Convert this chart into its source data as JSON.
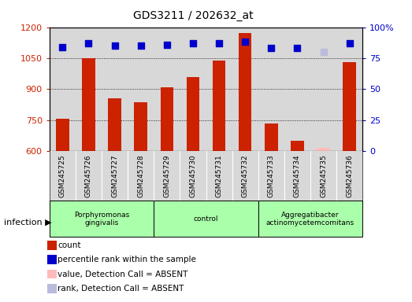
{
  "title": "GDS3211 / 202632_at",
  "samples": [
    "GSM245725",
    "GSM245726",
    "GSM245727",
    "GSM245728",
    "GSM245729",
    "GSM245730",
    "GSM245731",
    "GSM245732",
    "GSM245733",
    "GSM245734",
    "GSM245735",
    "GSM245736"
  ],
  "counts": [
    755,
    1050,
    855,
    835,
    910,
    960,
    1040,
    1170,
    735,
    650,
    615,
    1030
  ],
  "absent_counts": [
    null,
    null,
    null,
    null,
    null,
    null,
    null,
    null,
    null,
    null,
    615,
    null
  ],
  "percentile_ranks": [
    84,
    87,
    85,
    85,
    86,
    87,
    87,
    88,
    83,
    83,
    null,
    87
  ],
  "absent_ranks": [
    null,
    null,
    null,
    null,
    null,
    null,
    null,
    null,
    null,
    null,
    80,
    null
  ],
  "group_info": [
    {
      "start": 0,
      "end": 3,
      "label": "Porphyromonas\ngingivalis",
      "color": "#aaffaa"
    },
    {
      "start": 4,
      "end": 7,
      "label": "control",
      "color": "#aaffaa"
    },
    {
      "start": 8,
      "end": 11,
      "label": "Aggregatibacter\nactinomycetemcomitans",
      "color": "#aaffaa"
    }
  ],
  "ylim_left": [
    600,
    1200
  ],
  "ylim_right": [
    0,
    100
  ],
  "yticks_left": [
    600,
    750,
    900,
    1050,
    1200
  ],
  "yticks_right": [
    0,
    25,
    50,
    75,
    100
  ],
  "bar_color": "#cc2200",
  "dot_color": "#0000cc",
  "absent_bar_color": "#ffbbbb",
  "absent_dot_color": "#bbbbdd",
  "legend_items": [
    {
      "label": "count",
      "color": "#cc2200"
    },
    {
      "label": "percentile rank within the sample",
      "color": "#0000cc"
    },
    {
      "label": "value, Detection Call = ABSENT",
      "color": "#ffbbbb"
    },
    {
      "label": "rank, Detection Call = ABSENT",
      "color": "#bbbbdd"
    }
  ],
  "bar_width": 0.5,
  "dot_size": 40,
  "sample_bg_color": "#d8d8d8",
  "plot_bg_color": "#d8d8d8"
}
